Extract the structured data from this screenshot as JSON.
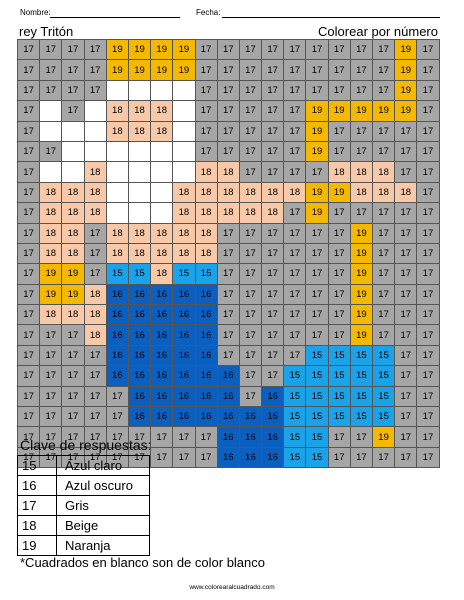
{
  "header": {
    "nombre_label": "Nombre:",
    "fecha_label": "Fecha:"
  },
  "title_left": "rey Tritón",
  "title_right": "Colorear por número",
  "colors": {
    "15": "#1aa3e8",
    "16": "#0b5fbf",
    "17": "#a6a6a6",
    "18": "#f8c9a8",
    "19": "#f5b800",
    "blank": "#ffffff"
  },
  "grid": [
    [
      "17",
      "17",
      "17",
      "17",
      "19",
      "19",
      "19",
      "19",
      "17",
      "17",
      "17",
      "17",
      "17",
      "17",
      "17",
      "17",
      "17",
      "19",
      "17"
    ],
    [
      "17",
      "17",
      "17",
      "17",
      "19",
      "19",
      "19",
      "19",
      "17",
      "17",
      "17",
      "17",
      "17",
      "17",
      "17",
      "17",
      "17",
      "19",
      "17"
    ],
    [
      "17",
      "17",
      "17",
      "17",
      "",
      "",
      "",
      "",
      "17",
      "17",
      "17",
      "17",
      "17",
      "17",
      "17",
      "17",
      "17",
      "19",
      "17"
    ],
    [
      "17",
      "",
      "17",
      "",
      "18",
      "18",
      "18",
      "",
      "17",
      "17",
      "17",
      "17",
      "17",
      "19",
      "19",
      "19",
      "19",
      "19",
      "17"
    ],
    [
      "17",
      "",
      "",
      "",
      "18",
      "18",
      "18",
      "",
      "17",
      "17",
      "17",
      "17",
      "17",
      "19",
      "17",
      "17",
      "17",
      "17",
      "17"
    ],
    [
      "17",
      "17",
      "",
      "",
      "",
      "",
      "",
      "",
      "17",
      "17",
      "17",
      "17",
      "17",
      "19",
      "17",
      "17",
      "17",
      "17",
      "17"
    ],
    [
      "17",
      "",
      "",
      "18",
      "",
      "",
      "",
      "",
      "18",
      "18",
      "17",
      "17",
      "17",
      "17",
      "18",
      "18",
      "18",
      "17",
      "17"
    ],
    [
      "17",
      "18",
      "18",
      "18",
      "",
      "",
      "",
      "18",
      "18",
      "18",
      "18",
      "18",
      "18",
      "19",
      "19",
      "18",
      "18",
      "18",
      "17"
    ],
    [
      "17",
      "18",
      "18",
      "18",
      "",
      "",
      "",
      "18",
      "18",
      "18",
      "18",
      "18",
      "17",
      "19",
      "17",
      "17",
      "17",
      "17",
      "17"
    ],
    [
      "17",
      "18",
      "18",
      "17",
      "18",
      "18",
      "18",
      "18",
      "18",
      "17",
      "17",
      "17",
      "17",
      "17",
      "17",
      "19",
      "17",
      "17",
      "17"
    ],
    [
      "17",
      "18",
      "18",
      "17",
      "18",
      "18",
      "18",
      "18",
      "18",
      "17",
      "17",
      "17",
      "17",
      "17",
      "17",
      "19",
      "17",
      "17",
      "17"
    ],
    [
      "17",
      "19",
      "19",
      "17",
      "15",
      "15",
      "18",
      "15",
      "15",
      "17",
      "17",
      "17",
      "17",
      "17",
      "17",
      "19",
      "17",
      "17",
      "17"
    ],
    [
      "17",
      "19",
      "19",
      "18",
      "16",
      "16",
      "16",
      "16",
      "16",
      "17",
      "17",
      "17",
      "17",
      "17",
      "17",
      "19",
      "17",
      "17",
      "17"
    ],
    [
      "17",
      "18",
      "18",
      "18",
      "16",
      "16",
      "16",
      "16",
      "16",
      "17",
      "17",
      "17",
      "17",
      "17",
      "17",
      "19",
      "17",
      "17",
      "17"
    ],
    [
      "17",
      "17",
      "17",
      "18",
      "16",
      "16",
      "16",
      "16",
      "16",
      "17",
      "17",
      "17",
      "17",
      "17",
      "17",
      "19",
      "17",
      "17",
      "17"
    ],
    [
      "17",
      "17",
      "17",
      "17",
      "16",
      "16",
      "16",
      "16",
      "16",
      "17",
      "17",
      "17",
      "17",
      "15",
      "15",
      "15",
      "15",
      "17",
      "17"
    ],
    [
      "17",
      "17",
      "17",
      "17",
      "16",
      "16",
      "16",
      "16",
      "16",
      "16",
      "17",
      "17",
      "15",
      "15",
      "15",
      "15",
      "15",
      "17",
      "17"
    ],
    [
      "17",
      "17",
      "17",
      "17",
      "17",
      "16",
      "16",
      "16",
      "16",
      "16",
      "17",
      "16",
      "15",
      "15",
      "15",
      "15",
      "15",
      "17",
      "17"
    ],
    [
      "17",
      "17",
      "17",
      "17",
      "17",
      "16",
      "16",
      "16",
      "16",
      "16",
      "16",
      "16",
      "15",
      "15",
      "15",
      "15",
      "15",
      "17",
      "17"
    ],
    [
      "17",
      "17",
      "17",
      "17",
      "17",
      "17",
      "17",
      "17",
      "17",
      "16",
      "16",
      "16",
      "15",
      "15",
      "17",
      "17",
      "19",
      "17",
      "17"
    ],
    [
      "17",
      "17",
      "17",
      "17",
      "17",
      "17",
      "17",
      "17",
      "17",
      "16",
      "16",
      "16",
      "15",
      "15",
      "17",
      "17",
      "17",
      "17",
      "17"
    ]
  ],
  "clave_title": "Clave de respuestas:",
  "legend": [
    {
      "num": "15",
      "label": "Azul claro"
    },
    {
      "num": "16",
      "label": "Azul oscuro"
    },
    {
      "num": "17",
      "label": "Gris"
    },
    {
      "num": "18",
      "label": "Beige"
    },
    {
      "num": "19",
      "label": "Naranja"
    }
  ],
  "note": "*Cuadrados en blanco son de color blanco",
  "site": "www.colorearalcuadrado.com"
}
